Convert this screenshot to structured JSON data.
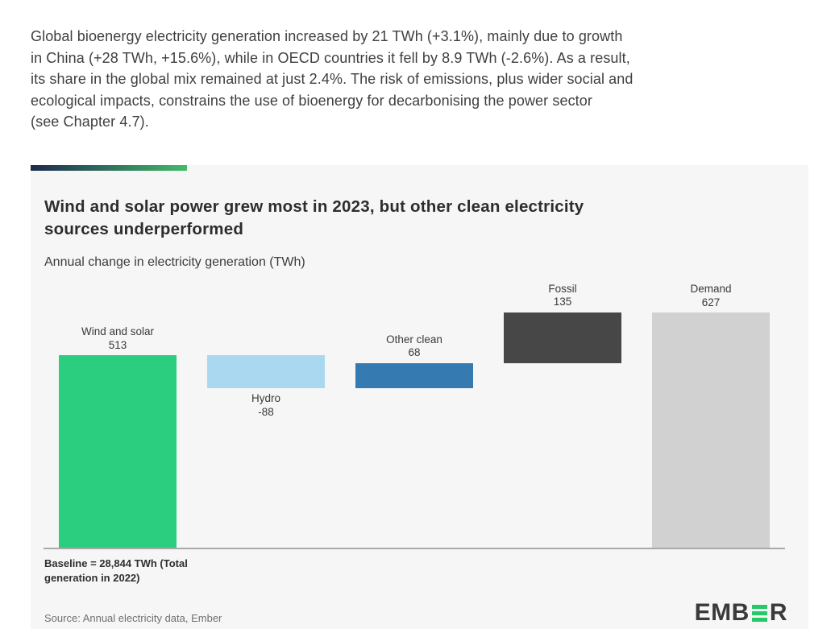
{
  "intro": {
    "lines": [
      "Global bioenergy electricity generation increased by 21 TWh (+3.1%), mainly due to growth",
      "in China (+28 TWh, +15.6%), while in OECD countries it fell by 8.9 TWh (-2.6%). As a result,",
      "its share in the global mix remained at just 2.4%. The risk of emissions, plus wider social and",
      "ecological impacts, constrains the use of bioenergy for decarbonising the power sector",
      "(see Chapter 4.7)."
    ]
  },
  "panel": {
    "background": "#f6f6f6",
    "accent_gradient": [
      "#1e2a4e",
      "#43ba6c"
    ]
  },
  "chart_data": {
    "type": "bar",
    "subtype": "waterfall",
    "title": "Wind and solar power grew most in 2023, but other clean electricity sources underperformed",
    "title_lines": [
      "Wind and solar power grew most in 2023, but other clean electricity",
      "sources underperformed"
    ],
    "subtitle": "Annual change in electricity generation (TWh)",
    "categories": [
      "Wind and solar",
      "Hydro",
      "Other clean",
      "Fossil",
      "Demand"
    ],
    "values": [
      513,
      -88,
      68,
      135,
      627
    ],
    "value_labels": [
      "513",
      "-88",
      "68",
      "135",
      "627"
    ],
    "last_bar_is_total": true,
    "bar_colors": [
      "#2bcd7f",
      "#abd8f1",
      "#357ab0",
      "#474747",
      "#d1d1d1"
    ],
    "unit": "TWh",
    "ylim": [
      0,
      720
    ],
    "grid": false,
    "legend": "none",
    "axis_color": "#a9a9a9",
    "baseline_note": "Baseline = 28,844 TWh (Total generation in 2022)",
    "baseline_note_lines": [
      "Baseline = 28,844 TWh (Total",
      "generation in 2022)"
    ],
    "source": "Source: Annual electricity data, Ember"
  },
  "brand": {
    "prefix": "EMB",
    "suffix": "R",
    "name": "EMBER",
    "accent_color": "#26c969"
  }
}
